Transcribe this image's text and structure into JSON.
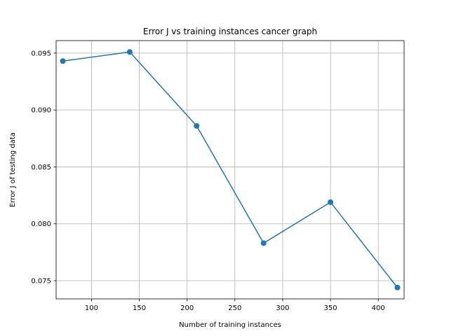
{
  "chart_data": {
    "type": "line",
    "title": "Error J vs training instances cancer graph",
    "xlabel": "Number of training instances",
    "ylabel": "Error J of testing data",
    "xlim": [
      63,
      427
    ],
    "ylim": [
      0.0734,
      0.0961
    ],
    "xticks": [
      100,
      150,
      200,
      250,
      300,
      350,
      400
    ],
    "yticks": [
      0.075,
      0.08,
      0.085,
      0.09,
      0.095
    ],
    "ytick_labels": [
      "0.075",
      "0.080",
      "0.085",
      "0.090",
      "0.095"
    ],
    "grid": true,
    "series": [
      {
        "x": [
          70,
          140,
          210,
          280,
          350,
          420
        ],
        "values": [
          0.0943,
          0.0951,
          0.0886,
          0.0783,
          0.0819,
          0.0744
        ],
        "color": "#1f77b4",
        "marker": "circle"
      }
    ]
  }
}
